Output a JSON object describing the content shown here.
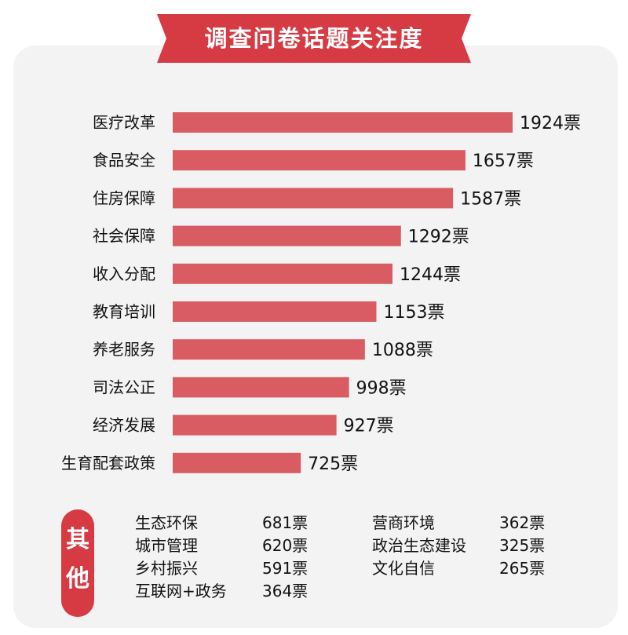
{
  "title": "调查问卷话题关注度",
  "chart_data": {
    "type": "bar",
    "orientation": "horizontal",
    "title": "调查问卷话题关注度",
    "unit": "票",
    "categories": [
      "医疗改革",
      "食品安全",
      "住房保障",
      "社会保障",
      "收入分配",
      "教育培训",
      "养老服务",
      "司法公正",
      "经济发展",
      "生育配套政策"
    ],
    "values": [
      1924,
      1657,
      1587,
      1292,
      1244,
      1153,
      1088,
      998,
      927,
      725
    ],
    "value_labels": [
      "1924票",
      "1657票",
      "1587票",
      "1292票",
      "1244票",
      "1153票",
      "1088票",
      "998票",
      "927票",
      "725票"
    ],
    "xlim": [
      0,
      1924
    ],
    "bar_color": "#d95c63"
  },
  "others": {
    "label_1": "其",
    "label_2": "他",
    "items": [
      {
        "name": "生态环保",
        "votes": "681票"
      },
      {
        "name": "城市管理",
        "votes": "620票"
      },
      {
        "name": "乡村振兴",
        "votes": "591票"
      },
      {
        "name": "互联网+政务",
        "votes": "364票"
      },
      {
        "name": "营商环境",
        "votes": "362票"
      },
      {
        "name": "政治生态建设",
        "votes": "325票"
      },
      {
        "name": "文化自信",
        "votes": "265票"
      }
    ]
  },
  "colors": {
    "accent": "#d63a43",
    "bar": "#d95c63",
    "card": "#f3f3f3"
  }
}
